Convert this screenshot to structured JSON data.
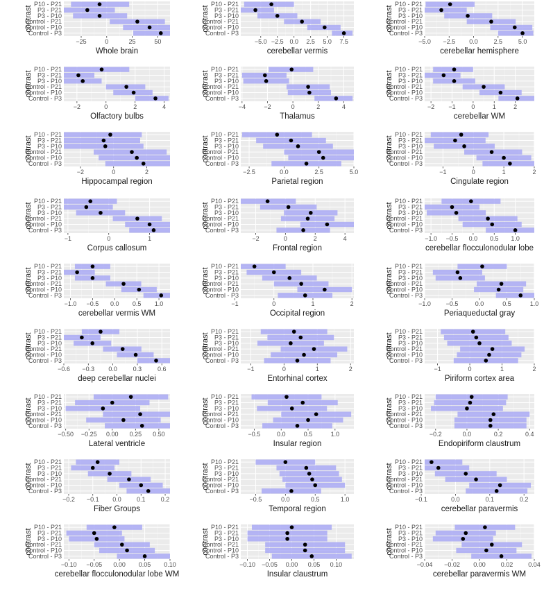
{
  "colors": {
    "panel_bg": "#ebebeb",
    "grid_major": "#ffffff",
    "interval_fill": "#a9a9f4",
    "point": "#000000",
    "axis_text": "#4d4d4d",
    "title_text": "#1a1a1a"
  },
  "chart_data": {
    "type": "forest",
    "grid": true,
    "y_axis_label": "contrast",
    "contrasts": [
      "P10 - P21",
      "P3 - P21",
      "P3 - P10",
      "Control - P21",
      "Control - P10",
      "Control - P3"
    ],
    "panels": [
      {
        "title": "Whole brain",
        "xlim": [
          -42,
          62
        ],
        "xticks": [
          -25,
          0,
          25,
          50
        ],
        "estimate": [
          -7,
          -19,
          -7,
          30,
          42,
          53
        ],
        "lower": [
          -35,
          -45,
          -33,
          3,
          16,
          26
        ],
        "upper": [
          22,
          8,
          20,
          57,
          68,
          79
        ]
      },
      {
        "title": "cerebellar vermis",
        "xlim": [
          -8,
          9
        ],
        "xticks": [
          -5.0,
          -2.5,
          0.0,
          2.5,
          5.0,
          7.5
        ],
        "estimate": [
          -3.4,
          -5.8,
          -2.5,
          1.2,
          4.6,
          7.5
        ],
        "lower": [
          -7.5,
          -8.3,
          -5.5,
          -1.5,
          2.0,
          5.7
        ],
        "upper": [
          0.0,
          -3.0,
          0.5,
          4.0,
          7.0,
          8.8
        ]
      },
      {
        "title": "cerebellar hemisphere",
        "xlim": [
          -5,
          6.2
        ],
        "xticks": [
          -5.0,
          -2.5,
          0.0,
          2.5,
          5.0
        ],
        "estimate": [
          -2.4,
          -3.3,
          -0.6,
          1.8,
          4.2,
          5.0
        ],
        "lower": [
          -4.9,
          -5.0,
          -3.0,
          -0.7,
          1.7,
          2.5
        ],
        "upper": [
          0.1,
          -0.7,
          1.9,
          4.3,
          6.0,
          6.1
        ]
      },
      {
        "title": "Olfactory bulbs",
        "xlim": [
          -2.9,
          4.4
        ],
        "xticks": [
          -2,
          0,
          2,
          4
        ],
        "estimate": [
          -0.3,
          -1.9,
          -1.6,
          1.4,
          1.9,
          3.4
        ],
        "lower": [
          -2.9,
          -2.9,
          -2.9,
          0.0,
          0.5,
          2.0
        ],
        "upper": [
          1.6,
          -0.8,
          -0.3,
          2.7,
          3.2,
          4.3
        ]
      },
      {
        "title": "Thalamus",
        "xlim": [
          -4.1,
          4.8
        ],
        "xticks": [
          -4,
          -2,
          0,
          2,
          4
        ],
        "estimate": [
          -0.1,
          -2.2,
          -2.1,
          1.2,
          1.3,
          3.4
        ],
        "lower": [
          -1.9,
          -4.0,
          -3.9,
          -0.5,
          -0.4,
          1.7
        ],
        "upper": [
          1.6,
          -0.5,
          -0.3,
          2.9,
          3.0,
          4.7
        ]
      },
      {
        "title": "cerebellar WM",
        "xlim": [
          -2.3,
          2.9
        ],
        "xticks": [
          -2,
          -1,
          0,
          1,
          2
        ],
        "estimate": [
          -0.9,
          -1.4,
          -0.9,
          0.5,
          1.3,
          2.1
        ],
        "lower": [
          -1.9,
          -2.3,
          -1.9,
          -0.5,
          0.3,
          1.2
        ],
        "upper": [
          0.0,
          -0.6,
          0.1,
          1.5,
          2.3,
          2.9
        ]
      },
      {
        "title": "Hippocampal region",
        "xlim": [
          -3.0,
          3.4
        ],
        "xticks": [
          -2,
          0,
          2
        ],
        "estimate": [
          -0.2,
          -0.6,
          -0.5,
          1.1,
          1.4,
          1.8
        ],
        "lower": [
          -3.0,
          -3.0,
          -3.0,
          -1.2,
          -0.9,
          -0.5
        ],
        "upper": [
          1.7,
          1.6,
          1.8,
          3.2,
          3.4,
          3.4
        ]
      },
      {
        "title": "Parietal region",
        "xlim": [
          -3.1,
          5.0
        ],
        "xticks": [
          -2.5,
          0.0,
          2.5,
          5.0
        ],
        "estimate": [
          -0.5,
          0.5,
          1.0,
          2.5,
          2.8,
          1.6
        ],
        "lower": [
          -3.0,
          -2.0,
          -1.5,
          0.0,
          0.3,
          -0.9
        ],
        "upper": [
          2.0,
          3.0,
          3.5,
          5.0,
          5.0,
          4.1
        ]
      },
      {
        "title": "Cingulate region",
        "xlim": [
          -1.6,
          2.0
        ],
        "xticks": [
          -1,
          0,
          1,
          2
        ],
        "estimate": [
          -0.4,
          -0.6,
          -0.3,
          0.6,
          1.0,
          1.2
        ],
        "lower": [
          -1.4,
          -1.6,
          -1.3,
          -0.3,
          0.1,
          0.3
        ],
        "upper": [
          0.5,
          0.4,
          0.7,
          1.6,
          1.9,
          2.0
        ]
      },
      {
        "title": "Corpus callosum",
        "xlim": [
          -1.1,
          1.5
        ],
        "xticks": [
          -1,
          0,
          1
        ],
        "estimate": [
          -0.45,
          -0.55,
          -0.2,
          0.7,
          1.0,
          1.1
        ],
        "lower": [
          -1.1,
          -1.1,
          -0.8,
          0.1,
          0.4,
          0.5
        ],
        "upper": [
          0.2,
          0.1,
          0.4,
          1.3,
          1.5,
          1.5
        ]
      },
      {
        "title": "Frontal region",
        "xlim": [
          -3.0,
          4.6
        ],
        "xticks": [
          -2,
          0,
          2,
          4
        ],
        "estimate": [
          -1.2,
          0.2,
          1.7,
          1.5,
          2.8,
          1.2
        ],
        "lower": [
          -3.0,
          -1.7,
          -0.1,
          -0.3,
          1.0,
          -0.6
        ],
        "upper": [
          0.7,
          2.1,
          3.5,
          3.3,
          4.6,
          3.0
        ]
      },
      {
        "title": "cerebellar flocculonodular lobe",
        "xlim": [
          -1.15,
          1.45
        ],
        "xticks": [
          -1.0,
          -0.5,
          0.0,
          0.5,
          1.0
        ],
        "estimate": [
          -0.05,
          -0.5,
          -0.4,
          0.35,
          0.45,
          1.0
        ],
        "lower": [
          -0.75,
          -1.15,
          -1.1,
          -0.35,
          -0.25,
          0.3
        ],
        "upper": [
          0.65,
          0.15,
          0.3,
          1.05,
          1.15,
          1.45
        ]
      },
      {
        "title": "cerebellar vermis WM",
        "xlim": [
          -1.15,
          1.25
        ],
        "xticks": [
          -1.0,
          -0.5,
          0.0,
          0.5,
          1.0
        ],
        "estimate": [
          -0.5,
          -0.85,
          -0.5,
          0.2,
          0.55,
          1.05
        ],
        "lower": [
          -0.9,
          -1.15,
          -0.9,
          -0.2,
          0.15,
          0.65
        ],
        "upper": [
          -0.1,
          -0.45,
          -0.1,
          0.6,
          0.95,
          1.25
        ]
      },
      {
        "title": "Occipital region",
        "xlim": [
          -0.85,
          2.05
        ],
        "xticks": [
          -1,
          0,
          1,
          2
        ],
        "estimate": [
          -0.5,
          0.0,
          0.4,
          0.7,
          1.3,
          0.8
        ],
        "lower": [
          -0.85,
          -0.7,
          -0.3,
          0.0,
          0.6,
          0.1
        ],
        "upper": [
          0.3,
          0.7,
          1.1,
          1.4,
          2.0,
          1.5
        ]
      },
      {
        "title": "Periaqueductal gray",
        "xlim": [
          -1.0,
          1.0
        ],
        "xticks": [
          -1.0,
          -0.5,
          0.0,
          0.5,
          1.0
        ],
        "estimate": [
          0.05,
          -0.4,
          -0.35,
          0.4,
          0.35,
          0.75
        ],
        "lower": [
          -0.4,
          -0.85,
          -0.8,
          -0.05,
          -0.1,
          0.3
        ],
        "upper": [
          0.5,
          0.05,
          0.1,
          0.85,
          0.8,
          1.0
        ]
      },
      {
        "title": "deep cerebellar nuclei",
        "xlim": [
          -0.6,
          0.7
        ],
        "xticks": [
          -0.6,
          -0.3,
          0.0,
          0.3,
          0.6
        ],
        "estimate": [
          -0.15,
          -0.38,
          -0.25,
          0.12,
          0.28,
          0.53
        ],
        "lower": [
          -0.38,
          -0.6,
          -0.48,
          -0.12,
          0.05,
          0.3
        ],
        "upper": [
          0.08,
          -0.15,
          -0.02,
          0.35,
          0.5,
          0.7
        ]
      },
      {
        "title": "Entorhinal cortex",
        "xlim": [
          -1.3,
          2.1
        ],
        "xticks": [
          -1,
          0,
          1,
          2
        ],
        "estimate": [
          0.3,
          0.5,
          0.2,
          0.9,
          0.6,
          0.4
        ],
        "lower": [
          -0.7,
          -0.5,
          -0.8,
          -0.1,
          -0.4,
          -0.6
        ],
        "upper": [
          1.3,
          1.5,
          1.2,
          1.9,
          1.6,
          1.4
        ]
      },
      {
        "title": "Piriform cortex area",
        "xlim": [
          -1.4,
          2.0
        ],
        "xticks": [
          -1,
          0,
          1,
          2
        ],
        "estimate": [
          0.1,
          0.2,
          0.3,
          0.7,
          0.6,
          0.5
        ],
        "lower": [
          -0.9,
          -0.8,
          -0.7,
          -0.3,
          -0.4,
          -0.5
        ],
        "upper": [
          1.1,
          1.2,
          1.3,
          1.7,
          1.6,
          1.5
        ]
      },
      {
        "title": "Lateral ventricle",
        "xlim": [
          -0.52,
          0.62
        ],
        "xticks": [
          -0.5,
          -0.25,
          0.0,
          0.25,
          0.5
        ],
        "estimate": [
          0.2,
          0.0,
          -0.1,
          0.3,
          0.12,
          0.32
        ],
        "lower": [
          -0.2,
          -0.4,
          -0.5,
          -0.1,
          -0.28,
          -0.08
        ],
        "upper": [
          0.6,
          0.4,
          0.3,
          0.62,
          0.52,
          0.62
        ]
      },
      {
        "title": "Insular region",
        "xlim": [
          -0.75,
          1.35
        ],
        "xticks": [
          -0.5,
          0.0,
          0.5,
          1.0
        ],
        "estimate": [
          0.1,
          0.4,
          0.2,
          0.65,
          0.5,
          0.3
        ],
        "lower": [
          -0.55,
          -0.25,
          -0.45,
          0.0,
          -0.15,
          -0.35
        ],
        "upper": [
          0.75,
          1.05,
          0.85,
          1.3,
          1.15,
          0.95
        ]
      },
      {
        "title": "Endopiriform claustrum",
        "xlim": [
          -0.27,
          0.43
        ],
        "xticks": [
          -0.2,
          0.0,
          0.2,
          0.4
        ],
        "estimate": [
          0.03,
          0.02,
          0.0,
          0.17,
          0.15,
          0.15
        ],
        "lower": [
          -0.2,
          -0.21,
          -0.23,
          -0.06,
          -0.08,
          -0.08
        ],
        "upper": [
          0.26,
          0.25,
          0.23,
          0.4,
          0.38,
          0.38
        ]
      },
      {
        "title": "Fiber Groups",
        "xlim": [
          -0.22,
          0.22
        ],
        "xticks": [
          -0.2,
          -0.1,
          0.0,
          0.1,
          0.2
        ],
        "estimate": [
          -0.08,
          -0.1,
          -0.03,
          0.05,
          0.1,
          0.13
        ],
        "lower": [
          -0.17,
          -0.19,
          -0.12,
          -0.04,
          0.01,
          0.04
        ],
        "upper": [
          0.01,
          -0.01,
          0.06,
          0.14,
          0.19,
          0.22
        ]
      },
      {
        "title": "Temporal region",
        "xlim": [
          -0.75,
          1.15
        ],
        "xticks": [
          -0.5,
          0.0,
          0.5,
          1.0
        ],
        "estimate": [
          0.0,
          0.35,
          0.4,
          0.45,
          0.5,
          0.1
        ],
        "lower": [
          -0.5,
          -0.15,
          -0.1,
          -0.05,
          0.0,
          -0.4
        ],
        "upper": [
          0.5,
          0.85,
          0.9,
          0.95,
          1.0,
          0.6
        ]
      },
      {
        "title": "cerebellar paravermis",
        "xlim": [
          -0.09,
          0.23
        ],
        "xticks": [
          -0.1,
          0.0,
          0.1,
          0.2
        ],
        "estimate": [
          -0.07,
          -0.05,
          0.03,
          0.06,
          0.13,
          0.12
        ],
        "lower": [
          -0.16,
          -0.14,
          -0.06,
          -0.03,
          0.04,
          0.03
        ],
        "upper": [
          0.02,
          0.04,
          0.12,
          0.15,
          0.22,
          0.21
        ]
      },
      {
        "title": "cerebellar flocculonodular lobe WM",
        "xlim": [
          -0.11,
          0.1
        ],
        "xticks": [
          -0.1,
          -0.05,
          0.0,
          0.05,
          0.1
        ],
        "estimate": [
          -0.01,
          -0.05,
          -0.045,
          0.005,
          0.015,
          0.05
        ],
        "lower": [
          -0.065,
          -0.105,
          -0.1,
          -0.05,
          -0.04,
          -0.005
        ],
        "upper": [
          0.045,
          0.005,
          0.01,
          0.06,
          0.07,
          0.1
        ]
      },
      {
        "title": "Insular claustrum",
        "xlim": [
          -0.115,
          0.14
        ],
        "xticks": [
          -0.1,
          -0.05,
          0.0,
          0.05,
          0.1
        ],
        "estimate": [
          0.0,
          -0.01,
          -0.01,
          0.03,
          0.03,
          0.045
        ],
        "lower": [
          -0.09,
          -0.1,
          -0.1,
          -0.06,
          -0.06,
          -0.045
        ],
        "upper": [
          0.09,
          0.08,
          0.08,
          0.12,
          0.12,
          0.135
        ]
      },
      {
        "title": "cerebellar paravermis WM",
        "xlim": [
          -0.04,
          0.04
        ],
        "xticks": [
          -0.04,
          -0.02,
          0.0,
          0.02,
          0.04
        ],
        "estimate": [
          0.004,
          -0.01,
          -0.012,
          0.009,
          0.005,
          0.016
        ],
        "lower": [
          -0.018,
          -0.032,
          -0.034,
          -0.013,
          -0.017,
          -0.006
        ],
        "upper": [
          0.026,
          0.012,
          0.01,
          0.031,
          0.027,
          0.038
        ]
      }
    ]
  }
}
